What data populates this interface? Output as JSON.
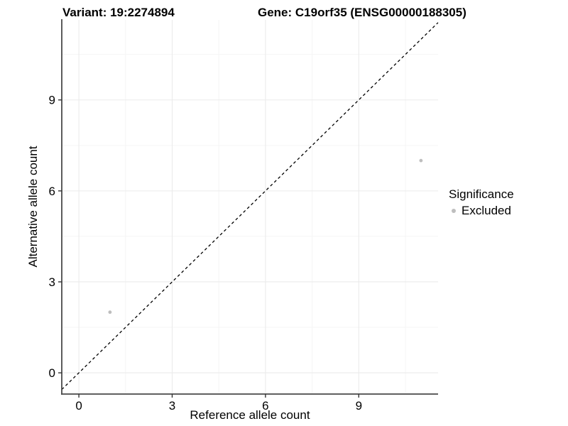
{
  "chart_data": {
    "type": "scatter",
    "titles": {
      "left": "Variant: 19:2274894",
      "right": "Gene: C19orf35 (ENSG00000188305)"
    },
    "xlabel": "Reference allele count",
    "ylabel": "Alternative allele count",
    "xlim": [
      -0.55,
      11.55
    ],
    "ylim": [
      -0.7,
      11.64
    ],
    "x_ticks": [
      0,
      3,
      6,
      9
    ],
    "y_ticks": [
      0,
      3,
      6,
      9
    ],
    "x_minor_gridlines": [
      1.5,
      4.5,
      7.5,
      10.5
    ],
    "y_minor_gridlines": [
      1.5,
      4.5,
      7.5,
      10.5
    ],
    "grid": "major+minor",
    "reference_line": {
      "type": "identity",
      "slope": 1,
      "intercept": 0,
      "style": "dashed",
      "color": "#000000"
    },
    "series": [
      {
        "name": "Excluded",
        "color": "#bebebe",
        "points": [
          {
            "x": 1,
            "y": 2
          },
          {
            "x": 11,
            "y": 7
          }
        ]
      }
    ],
    "legend": {
      "title": "Significance",
      "position": "right",
      "entries": [
        {
          "label": "Excluded",
          "color": "#bebebe"
        }
      ]
    },
    "colors": {
      "grid_major": "#ebebeb",
      "grid_minor": "#f5f5f5",
      "axis_line": "#4a4a4a",
      "tick_mark": "#333333",
      "text": "#000000",
      "background": "#ffffff"
    }
  }
}
